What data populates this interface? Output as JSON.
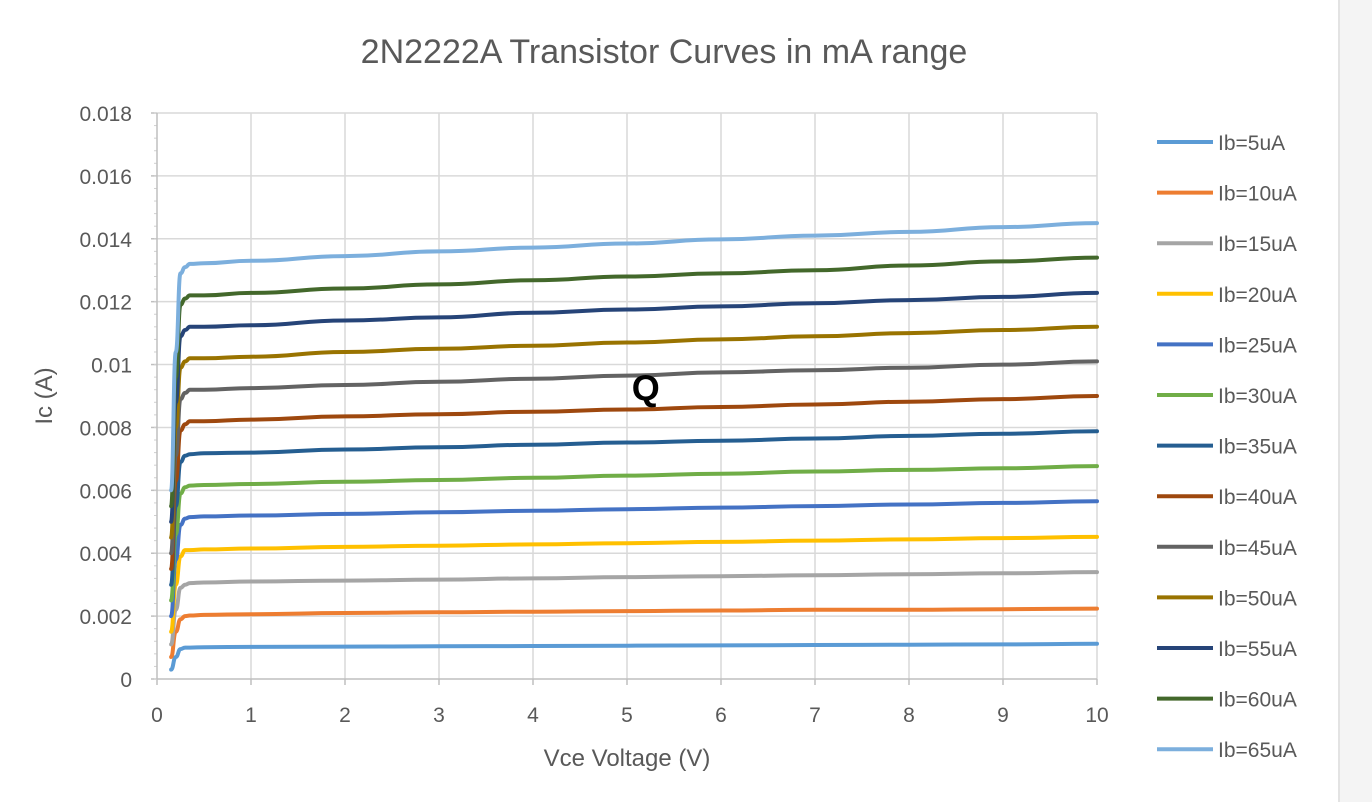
{
  "chart_data": {
    "type": "line",
    "title": "2N2222A Transistor Curves in mA range",
    "xlabel": "Vce Voltage (V)",
    "ylabel": "Ic (A)",
    "xlim": [
      0,
      10
    ],
    "ylim": [
      0,
      0.018
    ],
    "x_ticks": [
      "0",
      "1",
      "2",
      "3",
      "4",
      "5",
      "6",
      "7",
      "8",
      "9",
      "10"
    ],
    "y_ticks": [
      "0",
      "0.002",
      "0.004",
      "0.006",
      "0.008",
      "0.01",
      "0.012",
      "0.014",
      "0.016",
      "0.018"
    ],
    "grid": true,
    "legend_position": "right",
    "annotation": {
      "text": "Q",
      "x": 5.2,
      "y": 0.0093
    },
    "x": [
      0.15,
      0.2,
      0.25,
      0.3,
      0.35,
      0.5,
      1,
      2,
      3,
      4,
      5,
      6,
      7,
      8,
      9,
      10
    ],
    "series": [
      {
        "name": "Ib=5uA",
        "color": "#5B9BD5",
        "values": [
          0.0003,
          0.0007,
          0.00095,
          0.001,
          0.001,
          0.00101,
          0.00102,
          0.00103,
          0.00104,
          0.00105,
          0.00106,
          0.00107,
          0.00108,
          0.00109,
          0.0011,
          0.00112
        ]
      },
      {
        "name": "Ib=10uA",
        "color": "#ED7D31",
        "values": [
          0.0007,
          0.0015,
          0.0019,
          0.002,
          0.00202,
          0.00204,
          0.00206,
          0.0021,
          0.00212,
          0.00214,
          0.00216,
          0.00218,
          0.0022,
          0.0022,
          0.00222,
          0.00224
        ]
      },
      {
        "name": "Ib=15uA",
        "color": "#A5A5A5",
        "values": [
          0.0011,
          0.0022,
          0.0029,
          0.003,
          0.00305,
          0.00307,
          0.0031,
          0.00313,
          0.00316,
          0.0032,
          0.00324,
          0.00327,
          0.0033,
          0.00333,
          0.00336,
          0.0034
        ]
      },
      {
        "name": "Ib=20uA",
        "color": "#FFC000",
        "values": [
          0.0015,
          0.003,
          0.0039,
          0.0041,
          0.0041,
          0.00412,
          0.00415,
          0.0042,
          0.00424,
          0.00428,
          0.00432,
          0.00436,
          0.0044,
          0.00444,
          0.00448,
          0.00452
        ]
      },
      {
        "name": "Ib=25uA",
        "color": "#4472C4",
        "values": [
          0.002,
          0.0038,
          0.0049,
          0.0051,
          0.00515,
          0.00517,
          0.0052,
          0.00525,
          0.0053,
          0.00535,
          0.0054,
          0.00545,
          0.0055,
          0.00555,
          0.0056,
          0.00565
        ]
      },
      {
        "name": "Ib=30uA",
        "color": "#70AD47",
        "values": [
          0.0025,
          0.0046,
          0.0059,
          0.0061,
          0.00615,
          0.00617,
          0.0062,
          0.00627,
          0.00633,
          0.0064,
          0.00647,
          0.00653,
          0.0066,
          0.00665,
          0.0067,
          0.00677
        ]
      },
      {
        "name": "Ib=35uA",
        "color": "#255E91",
        "values": [
          0.003,
          0.0055,
          0.0069,
          0.0071,
          0.00715,
          0.00718,
          0.0072,
          0.0073,
          0.00737,
          0.00745,
          0.00752,
          0.00758,
          0.00765,
          0.00773,
          0.0078,
          0.00788
        ]
      },
      {
        "name": "Ib=40uA",
        "color": "#9E480E",
        "values": [
          0.0035,
          0.0063,
          0.0079,
          0.0081,
          0.0082,
          0.0082,
          0.00825,
          0.00835,
          0.00842,
          0.0085,
          0.00857,
          0.00865,
          0.00873,
          0.00882,
          0.0089,
          0.009
        ]
      },
      {
        "name": "Ib=45uA",
        "color": "#636363",
        "values": [
          0.004,
          0.0071,
          0.0089,
          0.0091,
          0.0092,
          0.0092,
          0.00925,
          0.00935,
          0.00945,
          0.00955,
          0.00965,
          0.00975,
          0.00982,
          0.0099,
          0.01,
          0.0101
        ]
      },
      {
        "name": "Ib=50uA",
        "color": "#997300",
        "values": [
          0.0045,
          0.008,
          0.0099,
          0.0101,
          0.0102,
          0.0102,
          0.01025,
          0.0104,
          0.0105,
          0.0106,
          0.0107,
          0.0108,
          0.0109,
          0.011,
          0.0111,
          0.0112
        ]
      },
      {
        "name": "Ib=55uA",
        "color": "#264478",
        "values": [
          0.005,
          0.0088,
          0.0109,
          0.0111,
          0.0112,
          0.0112,
          0.01125,
          0.0114,
          0.0115,
          0.01165,
          0.01175,
          0.01185,
          0.01195,
          0.01205,
          0.01215,
          0.01228
        ]
      },
      {
        "name": "Ib=60uA",
        "color": "#43682B",
        "values": [
          0.0055,
          0.0096,
          0.0119,
          0.0121,
          0.0122,
          0.0122,
          0.01228,
          0.01242,
          0.01255,
          0.01268,
          0.0128,
          0.0129,
          0.013,
          0.01315,
          0.01328,
          0.0134
        ]
      },
      {
        "name": "Ib=65uA",
        "color": "#7CAFDD",
        "values": [
          0.006,
          0.0104,
          0.0129,
          0.0131,
          0.0132,
          0.01322,
          0.0133,
          0.01345,
          0.0136,
          0.01372,
          0.01385,
          0.01398,
          0.0141,
          0.01422,
          0.01437,
          0.0145
        ]
      }
    ]
  }
}
